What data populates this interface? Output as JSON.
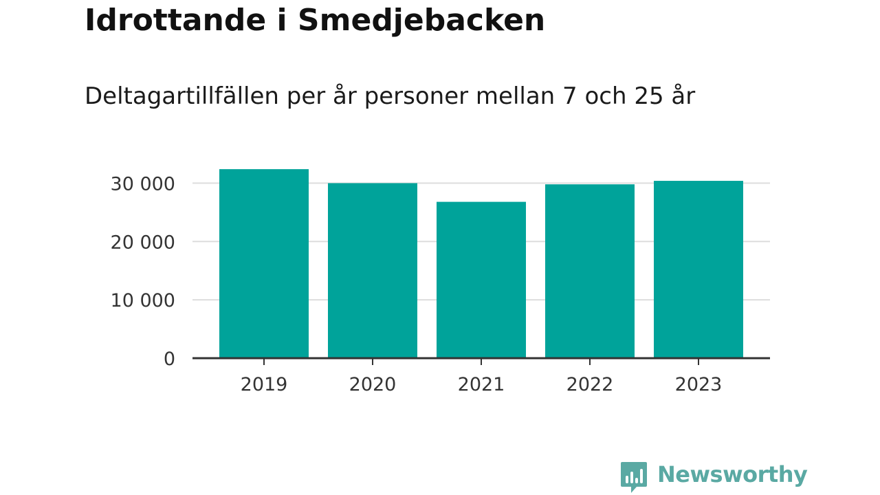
{
  "header": {
    "title": "Idrottande i Smedjebacken",
    "subtitle": "Deltagartillfällen per år personer mellan 7 och 25 år"
  },
  "brand": {
    "name": "Newsworthy",
    "icon": "newsworthy-logo-icon",
    "color": "#5aa9a3"
  },
  "chart_data": {
    "type": "bar",
    "categories": [
      "2019",
      "2020",
      "2021",
      "2022",
      "2023"
    ],
    "values": [
      32400,
      30000,
      26800,
      29800,
      30400
    ],
    "ylim": [
      0,
      35000
    ],
    "yticks": [
      0,
      10000,
      20000,
      30000
    ],
    "ytick_labels": [
      "0",
      "10 000",
      "20 000",
      "30 000"
    ],
    "grid": true,
    "bar_color": "#00a39a",
    "grid_color": "#dddddd",
    "axis_color": "#333333"
  }
}
